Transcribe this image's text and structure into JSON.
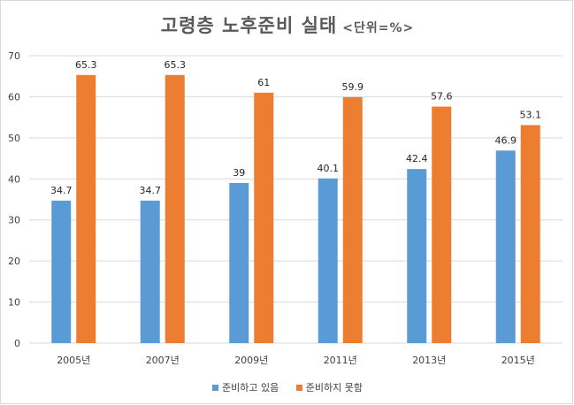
{
  "title": "고령층 노후준비 실태",
  "title_unit": "<단위=%>",
  "colors": {
    "series1": "#5b9bd5",
    "series2": "#ed7d31"
  },
  "chart_data": {
    "type": "bar",
    "title": "고령층 노후준비 실태",
    "subtitle": "<단위=%>",
    "categories": [
      "2005년",
      "2007년",
      "2009년",
      "2011년",
      "2013년",
      "2015년"
    ],
    "series": [
      {
        "name": "준비하고 있음",
        "values": [
          34.7,
          34.7,
          39,
          40.1,
          42.4,
          46.9
        ],
        "labels": [
          "34.7",
          "34.7",
          "39",
          "40.1",
          "42.4",
          "46.9"
        ]
      },
      {
        "name": "준비하지 못함",
        "values": [
          65.3,
          65.3,
          61,
          59.9,
          57.6,
          53.1
        ],
        "labels": [
          "65.3",
          "65.3",
          "61",
          "59.9",
          "57.6",
          "53.1"
        ]
      }
    ],
    "yticks": [
      "0",
      "10",
      "20",
      "30",
      "40",
      "50",
      "60",
      "70"
    ],
    "ylim": [
      0,
      70
    ],
    "xlabel": "",
    "ylabel": "",
    "grid": true,
    "legend": "bottom"
  }
}
